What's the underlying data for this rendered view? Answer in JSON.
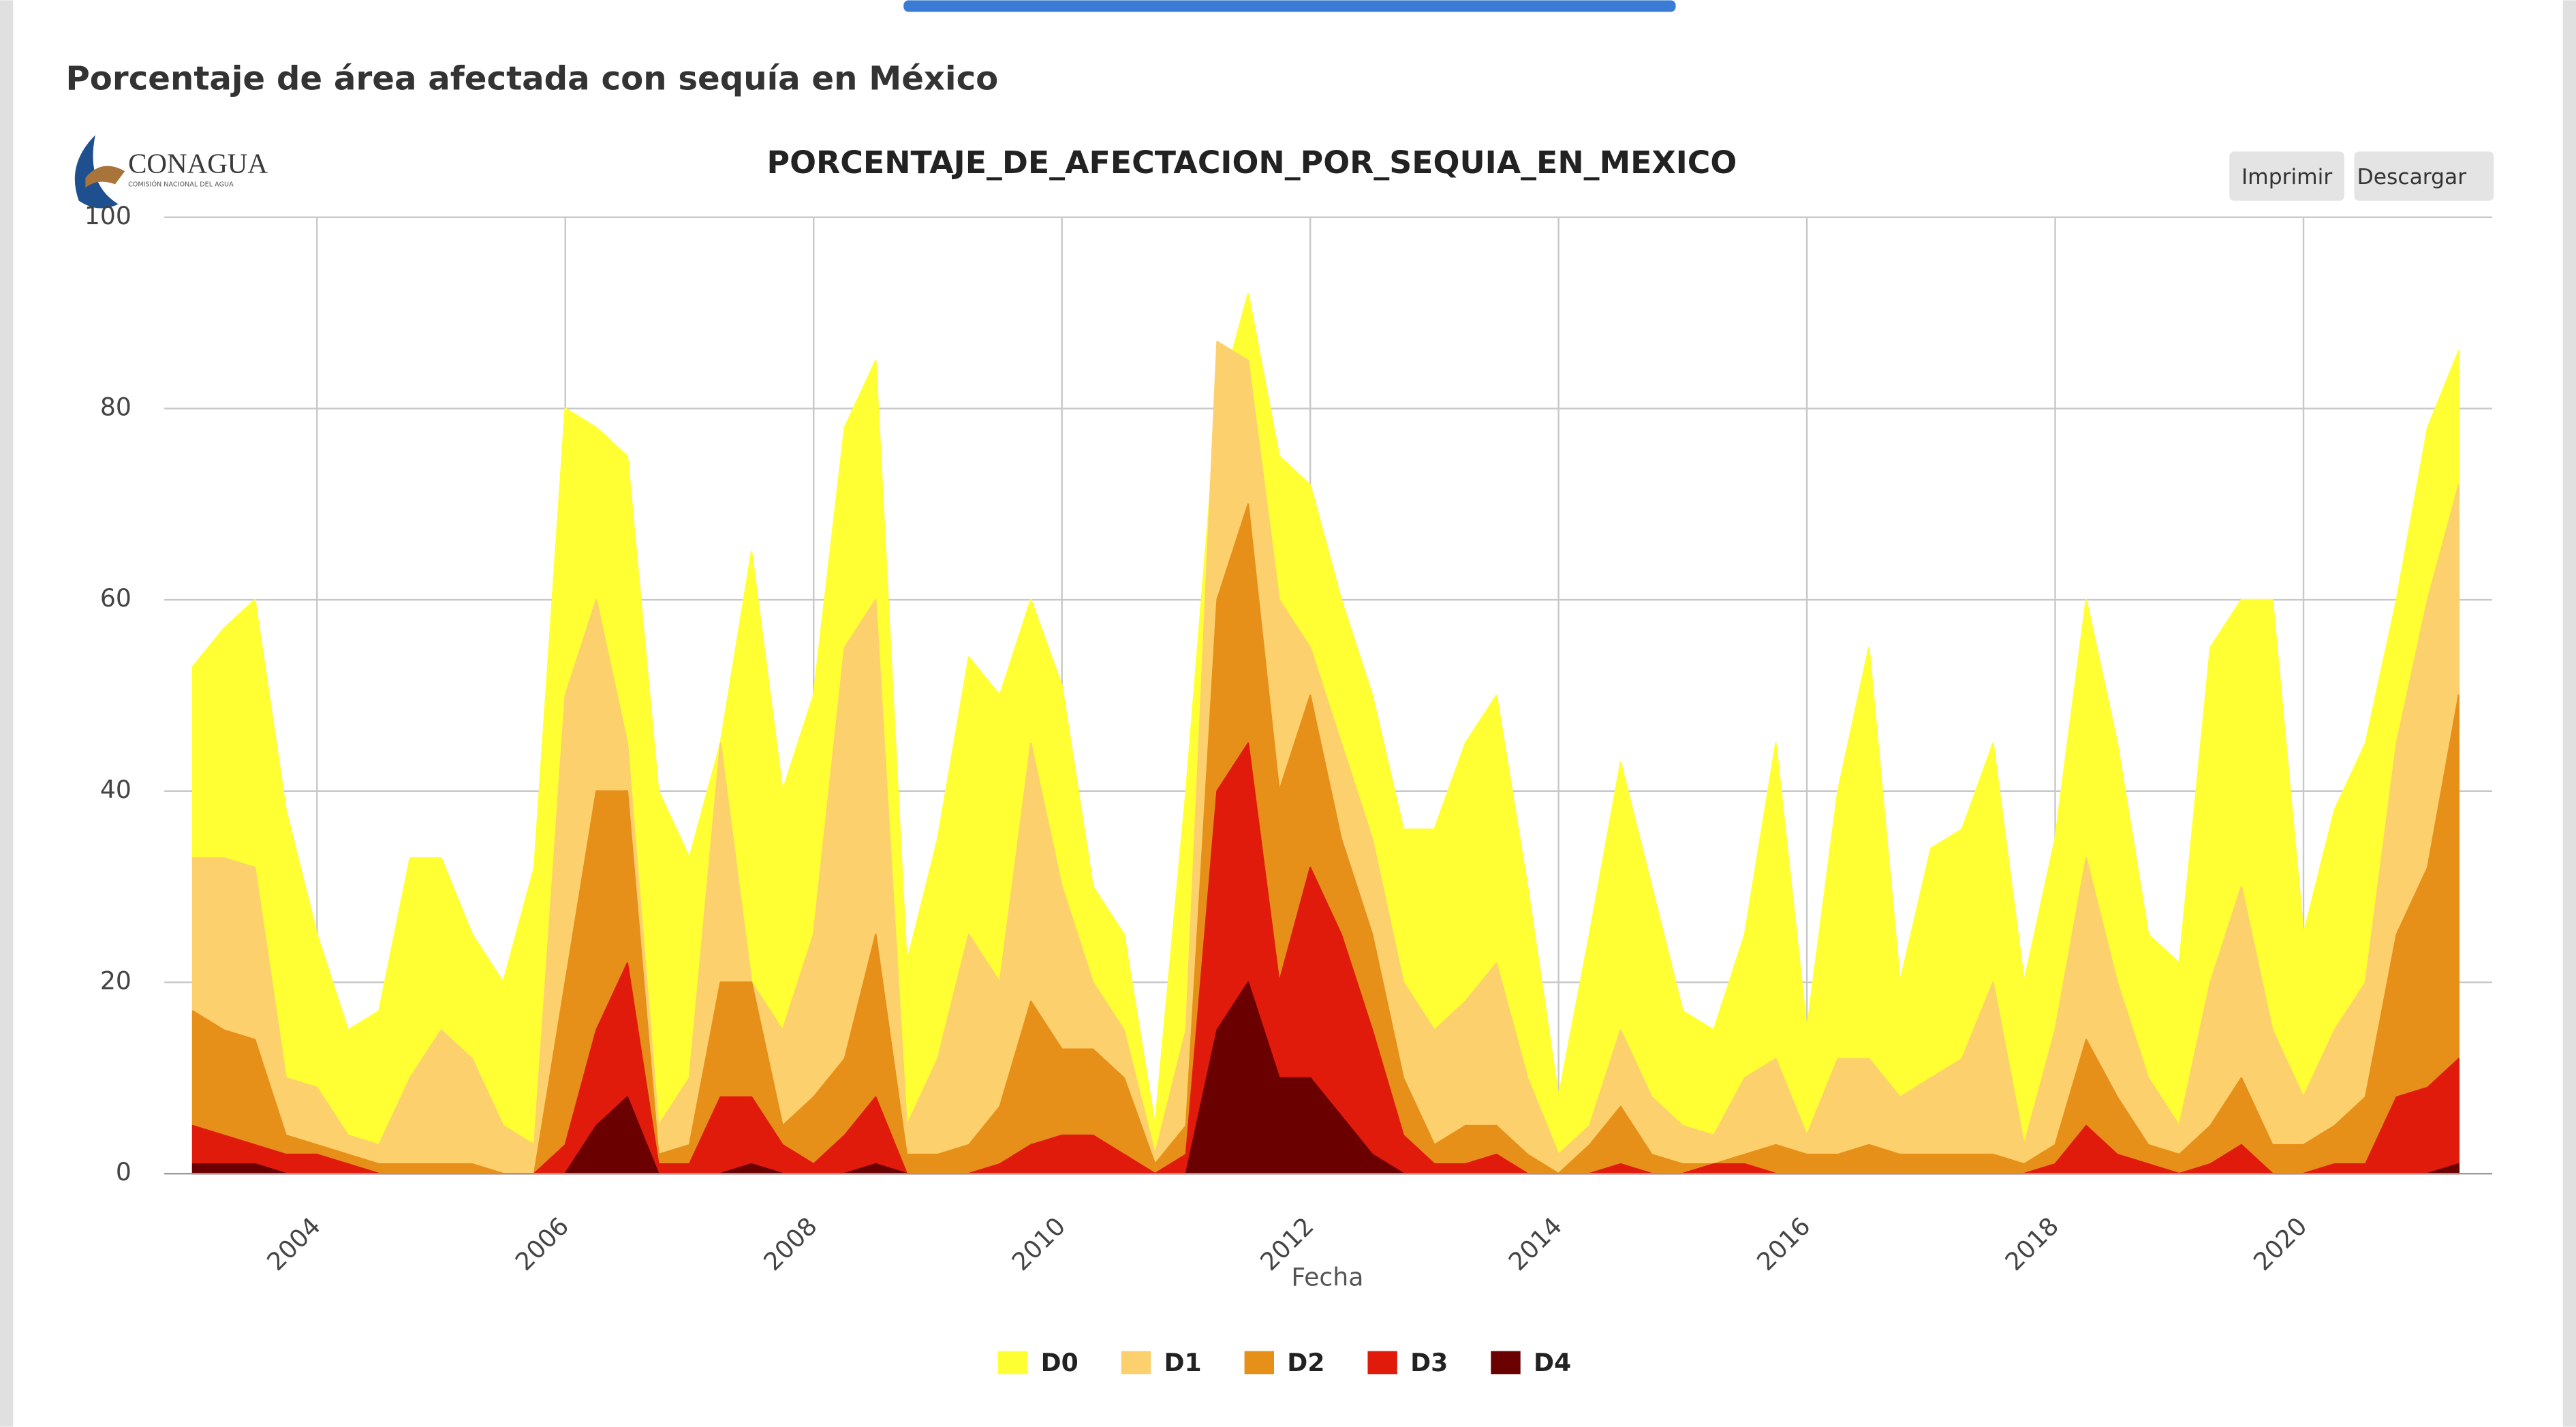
{
  "page": {
    "title": "Porcentaje de área afectada con sequía en México",
    "logo": "CONAGUA",
    "logo_subtitle": "COMISIÓN NACIONAL DEL AGUA",
    "buttons": [
      "Imprimir",
      "Descargar"
    ]
  },
  "chart_data": {
    "type": "area",
    "title": "PORCENTAJE_DE_AFECTACION_POR_SEQUIA_EN_MEXICO",
    "x_label": "Fecha",
    "x": [
      2003,
      2003.25,
      2003.5,
      2003.75,
      2004,
      2004.25,
      2004.5,
      2004.75,
      2005,
      2005.25,
      2005.5,
      2005.75,
      2006,
      2006.25,
      2006.5,
      2006.75,
      2007,
      2007.25,
      2007.5,
      2007.75,
      2008,
      2008.25,
      2008.5,
      2008.75,
      2009,
      2009.25,
      2009.5,
      2009.75,
      2010,
      2010.25,
      2010.5,
      2010.75,
      2011,
      2011.25,
      2011.5,
      2011.75,
      2012,
      2012.25,
      2012.5,
      2012.75,
      2013,
      2013.25,
      2013.5,
      2013.75,
      2014,
      2014.25,
      2014.5,
      2014.75,
      2015,
      2015.25,
      2015.5,
      2015.75,
      2016,
      2016.25,
      2016.5,
      2016.75,
      2017,
      2017.25,
      2017.5,
      2017.75,
      2018,
      2018.25,
      2018.5,
      2018.75,
      2019,
      2019.25,
      2019.5,
      2019.75,
      2020,
      2020.25,
      2020.5,
      2020.75,
      2021,
      2021.25
    ],
    "series": [
      {
        "name": "D0",
        "color": "#ffff33",
        "values": [
          53,
          57,
          60,
          38,
          25,
          15,
          17,
          33,
          33,
          25,
          20,
          32,
          80,
          78,
          75,
          40,
          33,
          45,
          65,
          40,
          50,
          78,
          85,
          22,
          35,
          54,
          50,
          60,
          51,
          30,
          25,
          5,
          40,
          80,
          92,
          75,
          72,
          60,
          50,
          36,
          36,
          45,
          50,
          30,
          8,
          25,
          43,
          30,
          17,
          15,
          25,
          45,
          15,
          40,
          55,
          20,
          34,
          36,
          45,
          20,
          35,
          60,
          45,
          25,
          22,
          55,
          60,
          60,
          25,
          38,
          45,
          60,
          78,
          86
        ]
      },
      {
        "name": "D1",
        "color": "#fdd06e",
        "values": [
          33,
          33,
          32,
          10,
          9,
          4,
          3,
          10,
          15,
          12,
          5,
          3,
          50,
          60,
          45,
          5,
          10,
          45,
          20,
          15,
          25,
          55,
          60,
          5,
          12,
          25,
          20,
          45,
          30,
          20,
          15,
          2,
          15,
          87,
          85,
          60,
          55,
          45,
          35,
          20,
          15,
          18,
          22,
          10,
          2,
          5,
          15,
          8,
          5,
          4,
          10,
          12,
          4,
          12,
          12,
          8,
          10,
          12,
          20,
          3,
          15,
          33,
          20,
          10,
          5,
          20,
          30,
          15,
          8,
          15,
          20,
          45,
          60,
          72
        ]
      },
      {
        "name": "D2",
        "color": "#e6901a",
        "values": [
          17,
          15,
          14,
          4,
          3,
          2,
          1,
          1,
          1,
          1,
          0,
          0,
          20,
          40,
          40,
          2,
          3,
          20,
          20,
          5,
          8,
          12,
          25,
          2,
          2,
          3,
          7,
          18,
          13,
          13,
          10,
          1,
          5,
          60,
          70,
          40,
          50,
          35,
          25,
          10,
          3,
          5,
          5,
          2,
          0,
          3,
          7,
          2,
          1,
          1,
          2,
          3,
          2,
          2,
          3,
          2,
          2,
          2,
          2,
          1,
          3,
          14,
          8,
          3,
          2,
          5,
          10,
          3,
          3,
          5,
          8,
          25,
          32,
          50
        ]
      },
      {
        "name": "D3",
        "color": "#e01b0c",
        "values": [
          5,
          4,
          3,
          2,
          2,
          1,
          0,
          0,
          0,
          0,
          0,
          0,
          3,
          15,
          22,
          1,
          1,
          8,
          8,
          3,
          1,
          4,
          8,
          0,
          0,
          0,
          1,
          3,
          4,
          4,
          2,
          0,
          2,
          40,
          45,
          20,
          32,
          25,
          15,
          4,
          1,
          1,
          2,
          0,
          0,
          0,
          1,
          0,
          0,
          1,
          1,
          0,
          0,
          0,
          0,
          0,
          0,
          0,
          0,
          0,
          1,
          5,
          2,
          1,
          0,
          1,
          3,
          0,
          0,
          1,
          1,
          8,
          9,
          12
        ]
      },
      {
        "name": "D4",
        "color": "#6b0000",
        "values": [
          1,
          1,
          1,
          0,
          0,
          0,
          0,
          0,
          0,
          0,
          0,
          0,
          0,
          5,
          8,
          0,
          0,
          0,
          1,
          0,
          0,
          0,
          1,
          0,
          0,
          0,
          0,
          0,
          0,
          0,
          0,
          0,
          0,
          15,
          20,
          10,
          10,
          6,
          2,
          0,
          0,
          0,
          0,
          0,
          0,
          0,
          0,
          0,
          0,
          0,
          0,
          0,
          0,
          0,
          0,
          0,
          0,
          0,
          0,
          0,
          0,
          0,
          0,
          0,
          0,
          0,
          0,
          0,
          0,
          0,
          0,
          0,
          0,
          1
        ]
      }
    ],
    "xlim": [
      2002.77,
      2021.52
    ],
    "xticks": [
      2004,
      2006,
      2008,
      2010,
      2012,
      2014,
      2016,
      2018,
      2020
    ],
    "ylim": [
      0,
      100
    ],
    "yticks": [
      0,
      20,
      40,
      60,
      80,
      100
    ],
    "grid": true,
    "legend": "bottom"
  }
}
